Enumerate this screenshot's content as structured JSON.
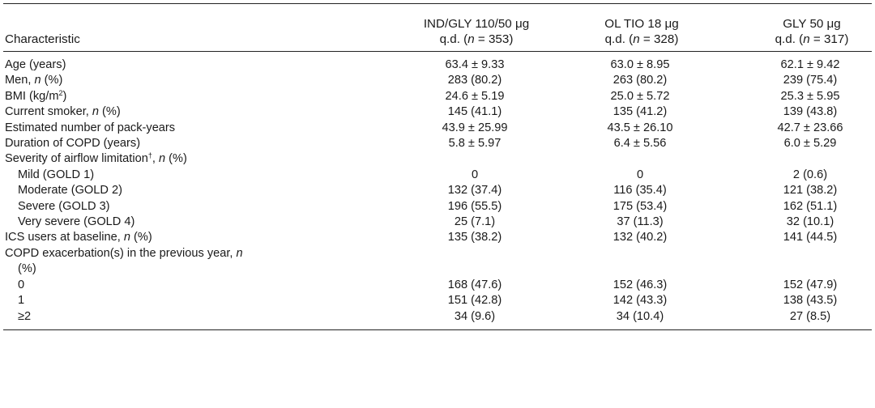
{
  "table": {
    "header": {
      "characteristic": "Characteristic",
      "col1_line1": "IND/GLY 110/50 μg",
      "col1_line2_pre": "q.d. (",
      "col1_n": "n",
      "col1_line2_post": " = 353)",
      "col2_line1": "OL TIO 18 μg",
      "col2_line2_pre": "q.d. (",
      "col2_n": "n",
      "col2_line2_post": " = 328)",
      "col3_line1": "GLY 50 μg",
      "col3_line2_pre": "q.d. (",
      "col3_n": "n",
      "col3_line2_post": " = 317)"
    },
    "rows": [
      {
        "label": "Age (years)",
        "v1": "63.4 ± 9.33",
        "v2": "63.0 ± 8.95",
        "v3": "62.1 ± 9.42"
      },
      {
        "label_pre": "Men, ",
        "label_it": "n",
        "label_post": " (%)",
        "v1": "283 (80.2)",
        "v2": "263 (80.2)",
        "v3": "239 (75.4)"
      },
      {
        "label_pre": "BMI (kg/m",
        "label_sup": "2",
        "label_post": ")",
        "v1": "24.6 ± 5.19",
        "v2": "25.0 ± 5.72",
        "v3": "25.3 ± 5.95"
      },
      {
        "label_pre": "Current smoker, ",
        "label_it": "n",
        "label_post": " (%)",
        "v1": "145 (41.1)",
        "v2": "135 (41.2)",
        "v3": "139 (43.8)"
      },
      {
        "label": "Estimated number of pack-years",
        "v1": "43.9 ± 25.99",
        "v2": "43.5 ± 26.10",
        "v3": "42.7 ± 23.66"
      },
      {
        "label": "Duration of COPD (years)",
        "v1": "5.8 ± 5.97",
        "v2": "6.4 ± 5.56",
        "v3": "6.0 ± 5.29"
      },
      {
        "label_pre": "Severity of airflow limitation",
        "label_sup": "†",
        "label_mid": ", ",
        "label_it": "n",
        "label_post": " (%)"
      },
      {
        "label": "Mild (GOLD 1)",
        "v1": "0",
        "v2": "0",
        "v3": "2 (0.6)"
      },
      {
        "label": "Moderate (GOLD 2)",
        "v1": "132 (37.4)",
        "v2": "116 (35.4)",
        "v3": "121 (38.2)"
      },
      {
        "label": "Severe (GOLD 3)",
        "v1": "196 (55.5)",
        "v2": "175 (53.4)",
        "v3": "162 (51.1)"
      },
      {
        "label": "Very severe (GOLD 4)",
        "v1": "25 (7.1)",
        "v2": "37 (11.3)",
        "v3": "32 (10.1)"
      },
      {
        "label_pre": "ICS users at baseline, ",
        "label_it": "n",
        "label_post": " (%)",
        "v1": "135 (38.2)",
        "v2": "132 (40.2)",
        "v3": "141 (44.5)"
      },
      {
        "label_pre": "COPD exacerbation(s) in the previous year, ",
        "label_it": "n",
        "label_line2": "(%)"
      },
      {
        "label": "0",
        "v1": "168 (47.6)",
        "v2": "152 (46.3)",
        "v3": "152 (47.9)"
      },
      {
        "label": "1",
        "v1": "151 (42.8)",
        "v2": "142 (43.3)",
        "v3": "138 (43.5)"
      },
      {
        "label": "≥2",
        "v1": "34 (9.6)",
        "v2": "34 (10.4)",
        "v3": "27 (8.5)"
      }
    ]
  }
}
